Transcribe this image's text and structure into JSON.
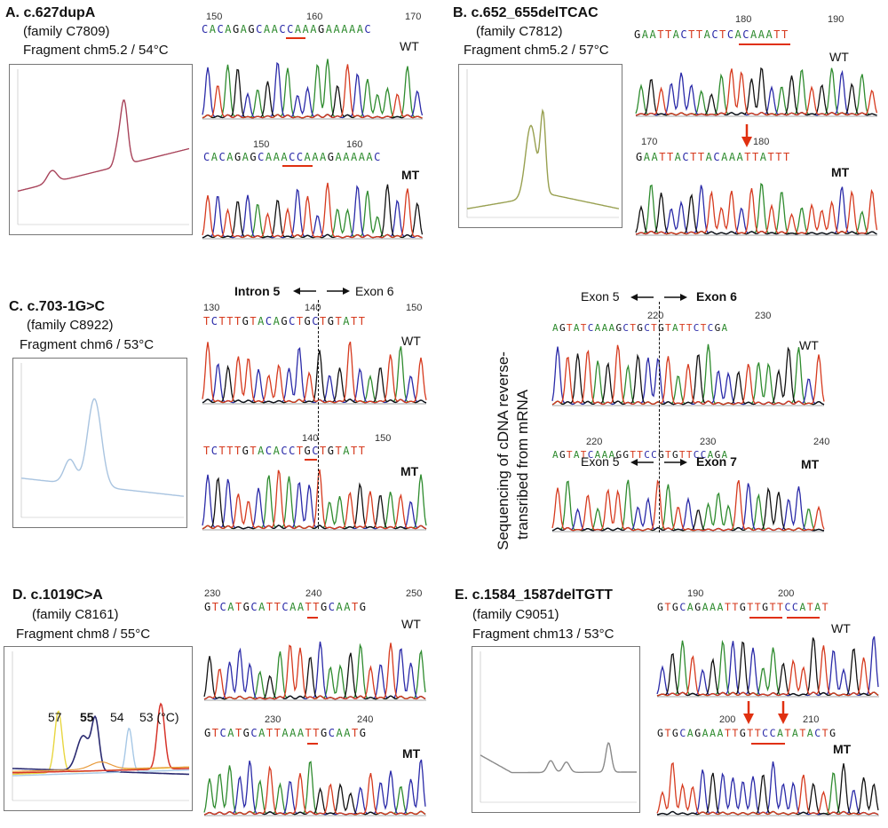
{
  "colors": {
    "A": "#2e8b2e",
    "C": "#2a2aa8",
    "G": "#111111",
    "T": "#d63a1e",
    "underline": "#e03010",
    "arrow": "#e03010",
    "melt_A": "#a8435a",
    "melt_B": "#98a050",
    "melt_C": "#a9c4e0",
    "melt_E": "#8a8a8a"
  },
  "panels": {
    "A": {
      "title": "A. c.627dupA",
      "family": "(family  C7809)",
      "fragment": "Fragment chm5.2 / 54°C",
      "wt": {
        "nums": [
          "150",
          "160",
          "170"
        ],
        "seq": "CACAGAGCAACCAAAGAAAAAC",
        "label": "WT"
      },
      "mt": {
        "nums": [
          "150",
          "160"
        ],
        "seq": "CACAGAGCAAACCAAAGAAAAAC",
        "label": "MT"
      }
    },
    "B": {
      "title": "B. c.652_655delTCAC",
      "family": "(family  C7812)",
      "fragment": "Fragment chm5.2 / 57°C",
      "wt": {
        "nums": [
          "180",
          "190"
        ],
        "seq": "GAATTACTTACTCACAAATT",
        "label": "WT"
      },
      "mt": {
        "nums": [
          "170",
          "180"
        ],
        "seq": "GAATTACTTACAAATTATTT",
        "label": "MT"
      }
    },
    "C": {
      "title": "C. c.703-1G>C",
      "family": "(family  C8922)",
      "fragment": "Fragment chm6 / 53°C",
      "intron_label": "Intron 5",
      "exon_label": "Exon 6",
      "wt": {
        "nums": [
          "130",
          "140",
          "150"
        ],
        "seq": "TCTTTGTACAGCTGCTGTATT",
        "label": "WT"
      },
      "mt": {
        "nums": [
          "140",
          "150"
        ],
        "seq": "TCTTTGTACACCTGCTGTATT",
        "label": "MT"
      }
    },
    "cdna": {
      "side_label_1": "Sequencing of cDNA reverse-",
      "side_label_2": "transribed from mRNA",
      "wt_exon_a": "Exon 5",
      "wt_exon_b": "Exon 6",
      "mt_exon_a": "Exon 5",
      "mt_exon_b": "Exon 7",
      "wt": {
        "nums": [
          "220",
          "230"
        ],
        "seq": "AGTATCAAAGCTGCTGTATTCTCGA",
        "label": "WT"
      },
      "mt": {
        "nums": [
          "220",
          "230",
          "240"
        ],
        "seq": "AGTATCAAAGGTTCCGTGTTCCAGA",
        "label": "MT"
      }
    },
    "D": {
      "title": "D. c.1019C>A",
      "family": "(family  C8161)",
      "fragment": "Fragment chm8 / 55°C",
      "temps": [
        "57",
        "55",
        "54",
        "53 (°C)"
      ],
      "wt": {
        "nums": [
          "230",
          "240",
          "250"
        ],
        "seq": "GTCATGCATTCAATTGCAATG",
        "label": "WT"
      },
      "mt": {
        "nums": [
          "230",
          "240"
        ],
        "seq": "GTCATGCATTAAATTGCAATG",
        "label": "MT"
      }
    },
    "E": {
      "title": "E. c.1584_1587delTGTT",
      "family": "(family  C9051)",
      "fragment": "Fragment chm13 / 53°C",
      "wt": {
        "nums": [
          "190",
          "200"
        ],
        "seq": "GTGCAGAAATTGTTGTTCCATAT",
        "label": "WT"
      },
      "mt": {
        "nums": [
          "200",
          "210"
        ],
        "seq": "GTGCAGAAATTGTTCCATATACTG",
        "label": "MT"
      }
    }
  }
}
